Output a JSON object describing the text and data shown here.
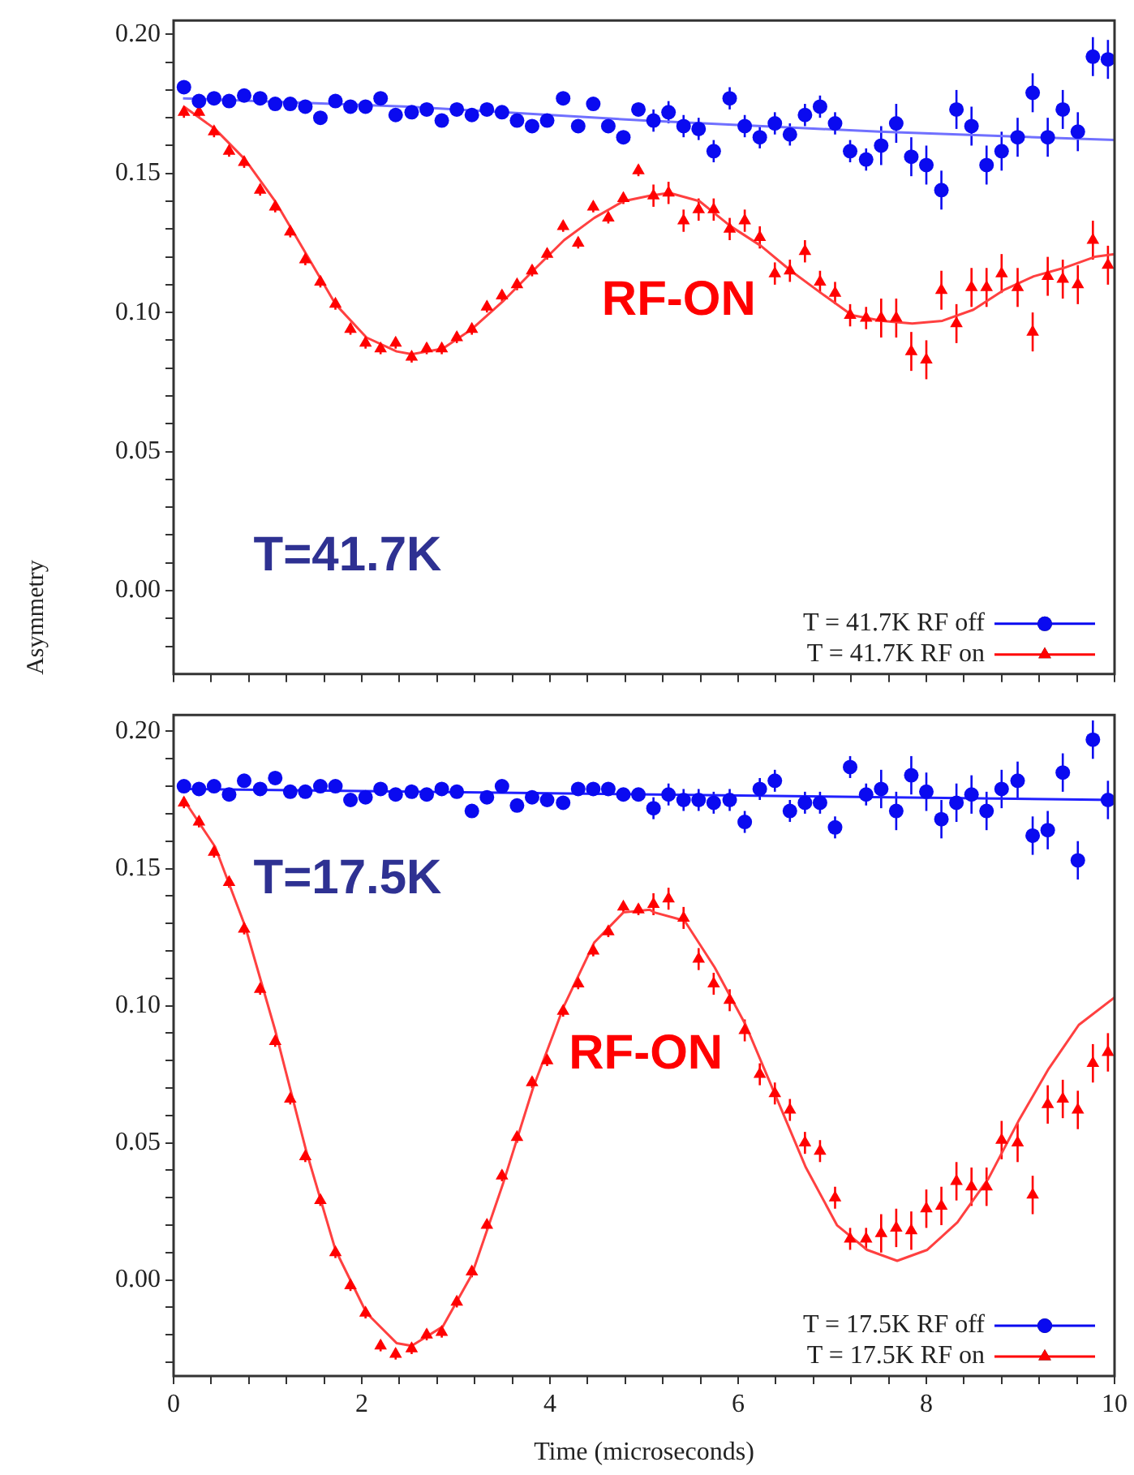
{
  "chart_data": [
    {
      "type": "scatter",
      "ylabel": "Asymmetry",
      "annotations": [
        "RF-ON",
        "T=41.7K"
      ],
      "legend": "bottom right",
      "tick_labels": "y",
      "xlim": [
        0,
        10
      ],
      "ylim": [
        -0.03,
        0.205
      ],
      "xticks": [
        {
          "value": 0,
          "label": null
        },
        {
          "value": 0.4,
          "label": null
        },
        {
          "value": 0.8,
          "label": null
        },
        {
          "value": 1.2,
          "label": null
        },
        {
          "value": 1.6,
          "label": null
        },
        {
          "value": 2,
          "label": null
        },
        {
          "value": 2.4,
          "label": null
        },
        {
          "value": 2.8,
          "label": null
        },
        {
          "value": 3.2,
          "label": null
        },
        {
          "value": 3.6,
          "label": null
        },
        {
          "value": 4,
          "label": null
        },
        {
          "value": 4.4,
          "label": null
        },
        {
          "value": 4.8,
          "label": null
        },
        {
          "value": 5.2,
          "label": null
        },
        {
          "value": 5.6,
          "label": null
        },
        {
          "value": 6,
          "label": null
        },
        {
          "value": 6.4,
          "label": null
        },
        {
          "value": 6.8,
          "label": null
        },
        {
          "value": 7.2,
          "label": null
        },
        {
          "value": 7.6,
          "label": null
        },
        {
          "value": 8,
          "label": null
        },
        {
          "value": 8.4,
          "label": null
        },
        {
          "value": 8.8,
          "label": null
        },
        {
          "value": 9.2,
          "label": null
        },
        {
          "value": 9.6,
          "label": null
        },
        {
          "value": 10,
          "label": null
        }
      ],
      "yticks": [
        {
          "value": -0.02,
          "label": null
        },
        {
          "value": -0.01,
          "label": null
        },
        {
          "value": 0,
          "label": "0.00"
        },
        {
          "value": 0.01,
          "label": null
        },
        {
          "value": 0.02,
          "label": null
        },
        {
          "value": 0.03,
          "label": null
        },
        {
          "value": 0.04,
          "label": null
        },
        {
          "value": 0.05,
          "label": "0.05"
        },
        {
          "value": 0.06,
          "label": null
        },
        {
          "value": 0.07,
          "label": null
        },
        {
          "value": 0.08,
          "label": null
        },
        {
          "value": 0.09,
          "label": null
        },
        {
          "value": 0.1,
          "label": "0.10"
        },
        {
          "value": 0.11,
          "label": null
        },
        {
          "value": 0.12,
          "label": null
        },
        {
          "value": 0.13,
          "label": null
        },
        {
          "value": 0.14,
          "label": null
        },
        {
          "value": 0.15,
          "label": "0.15"
        },
        {
          "value": 0.16,
          "label": null
        },
        {
          "value": 0.17,
          "label": null
        },
        {
          "value": 0.18,
          "label": null
        },
        {
          "value": 0.19,
          "label": null
        },
        {
          "value": 0.2,
          "label": "0.20"
        }
      ],
      "x": [
        0.11,
        0.27,
        0.43,
        0.59,
        0.75,
        0.92,
        1.08,
        1.24,
        1.4,
        1.56,
        1.72,
        1.88,
        2.04,
        2.2,
        2.36,
        2.53,
        2.69,
        2.85,
        3.01,
        3.17,
        3.33,
        3.49,
        3.65,
        3.81,
        3.97,
        4.14,
        4.3,
        4.46,
        4.62,
        4.78,
        4.94,
        5.1,
        5.26,
        5.42,
        5.58,
        5.74,
        5.91,
        6.07,
        6.23,
        6.39,
        6.55,
        6.71,
        6.87,
        7.03,
        7.19,
        7.36,
        7.52,
        7.68,
        7.84,
        8.0,
        8.16,
        8.32,
        8.48,
        8.64,
        8.8,
        8.97,
        9.13,
        9.29,
        9.45,
        9.61,
        9.77,
        9.93
      ],
      "series": [
        {
          "name": "T = 41.7K RF off",
          "color": "#0a0af0",
          "marker": "circle",
          "values": [
            0.181,
            0.176,
            0.177,
            0.176,
            0.178,
            0.177,
            0.175,
            0.175,
            0.174,
            0.17,
            0.176,
            0.174,
            0.174,
            0.177,
            0.171,
            0.172,
            0.173,
            0.169,
            0.173,
            0.171,
            0.173,
            0.172,
            0.169,
            0.167,
            0.169,
            0.177,
            0.167,
            0.175,
            0.167,
            0.163,
            0.173,
            0.169,
            0.172,
            0.167,
            0.166,
            0.158,
            0.177,
            0.167,
            0.163,
            0.168,
            0.164,
            0.171,
            0.174,
            0.168,
            0.158,
            0.155,
            0.16,
            0.168,
            0.156,
            0.153,
            0.144,
            0.173,
            0.167,
            0.153,
            0.158,
            0.163,
            0.179,
            0.163,
            0.173,
            0.165,
            0.192,
            0.191
          ],
          "errors": [
            0.002,
            0.002,
            0.002,
            0.002,
            0.002,
            0.002,
            0.002,
            0.002,
            0.002,
            0.002,
            0.002,
            0.002,
            0.002,
            0.002,
            0.002,
            0.002,
            0.002,
            0.002,
            0.002,
            0.002,
            0.002,
            0.002,
            0.002,
            0.002,
            0.002,
            0.002,
            0.002,
            0.002,
            0.002,
            0.002,
            0.002,
            0.004,
            0.004,
            0.004,
            0.004,
            0.004,
            0.004,
            0.004,
            0.004,
            0.004,
            0.004,
            0.004,
            0.004,
            0.004,
            0.004,
            0.004,
            0.007,
            0.007,
            0.007,
            0.007,
            0.007,
            0.007,
            0.007,
            0.007,
            0.007,
            0.007,
            0.007,
            0.007,
            0.007,
            0.007,
            0.007,
            0.007
          ]
        },
        {
          "name": "T = 41.7K RF on",
          "color": "#ff0000",
          "marker": "triangle",
          "values": [
            0.172,
            0.172,
            0.165,
            0.158,
            0.154,
            0.144,
            0.138,
            0.129,
            0.119,
            0.111,
            0.103,
            0.094,
            0.089,
            0.087,
            0.089,
            0.084,
            0.087,
            0.087,
            0.091,
            0.094,
            0.102,
            0.106,
            0.11,
            0.115,
            0.121,
            0.131,
            0.125,
            0.138,
            0.134,
            0.141,
            0.151,
            0.142,
            0.143,
            0.133,
            0.137,
            0.137,
            0.13,
            0.133,
            0.127,
            0.114,
            0.115,
            0.122,
            0.111,
            0.107,
            0.099,
            0.098,
            0.098,
            0.098,
            0.086,
            0.083,
            0.108,
            0.096,
            0.109,
            0.109,
            0.114,
            0.109,
            0.093,
            0.113,
            0.112,
            0.11,
            0.126,
            0.117
          ],
          "errors": [
            0.002,
            0.002,
            0.002,
            0.002,
            0.002,
            0.002,
            0.002,
            0.002,
            0.002,
            0.002,
            0.002,
            0.002,
            0.002,
            0.002,
            0.002,
            0.002,
            0.002,
            0.002,
            0.002,
            0.002,
            0.002,
            0.002,
            0.002,
            0.002,
            0.002,
            0.002,
            0.002,
            0.002,
            0.002,
            0.002,
            0.002,
            0.004,
            0.004,
            0.004,
            0.004,
            0.004,
            0.004,
            0.004,
            0.004,
            0.004,
            0.004,
            0.004,
            0.004,
            0.004,
            0.004,
            0.004,
            0.007,
            0.007,
            0.007,
            0.007,
            0.007,
            0.007,
            0.007,
            0.007,
            0.007,
            0.007,
            0.007,
            0.007,
            0.007,
            0.007,
            0.007,
            0.007
          ]
        },
        {
          "type": "line",
          "marker": "none",
          "color": "#7070ff",
          "x": [
            0.1,
            2.5,
            5,
            7.5,
            10
          ],
          "values": [
            0.177,
            0.174,
            0.169,
            0.165,
            0.162
          ]
        },
        {
          "type": "line",
          "marker": "none",
          "color": "#ff4040",
          "x": [
            0.11,
            0.44,
            0.76,
            1.08,
            1.41,
            1.72,
            2.05,
            2.37,
            2.53,
            2.86,
            3.17,
            3.5,
            3.82,
            4.15,
            4.47,
            4.78,
            5.06,
            5.27,
            5.59,
            5.92,
            6.24,
            6.56,
            6.88,
            7.21,
            7.53,
            7.85,
            8.17,
            8.5,
            8.82,
            9.14,
            9.46,
            9.79,
            10
          ],
          "values": [
            0.174,
            0.166,
            0.155,
            0.14,
            0.121,
            0.103,
            0.091,
            0.086,
            0.085,
            0.087,
            0.094,
            0.104,
            0.115,
            0.126,
            0.134,
            0.14,
            0.142,
            0.143,
            0.14,
            0.131,
            0.124,
            0.115,
            0.107,
            0.099,
            0.097,
            0.096,
            0.097,
            0.101,
            0.108,
            0.113,
            0.116,
            0.12,
            0.121
          ]
        }
      ]
    },
    {
      "type": "scatter",
      "xlabel": "Time (microseconds)",
      "annotations": [
        "T=17.5K",
        "RF-ON"
      ],
      "legend": "bottom right",
      "xlim": [
        0,
        10
      ],
      "ylim": [
        -0.035,
        0.206
      ],
      "xticks": [
        0,
        {
          "value": 0.4,
          "label": null
        },
        {
          "value": 0.8,
          "label": null
        },
        {
          "value": 1.2,
          "label": null
        },
        {
          "value": 1.6,
          "label": null
        },
        2,
        {
          "value": 2.4,
          "label": null
        },
        {
          "value": 2.8,
          "label": null
        },
        {
          "value": 3.2,
          "label": null
        },
        {
          "value": 3.6,
          "label": null
        },
        4,
        {
          "value": 4.4,
          "label": null
        },
        {
          "value": 4.8,
          "label": null
        },
        {
          "value": 5.2,
          "label": null
        },
        {
          "value": 5.6,
          "label": null
        },
        6,
        {
          "value": 6.4,
          "label": null
        },
        {
          "value": 6.8,
          "label": null
        },
        {
          "value": 7.2,
          "label": null
        },
        {
          "value": 7.6,
          "label": null
        },
        8,
        {
          "value": 8.4,
          "label": null
        },
        {
          "value": 8.8,
          "label": null
        },
        {
          "value": 9.2,
          "label": null
        },
        {
          "value": 9.6,
          "label": null
        },
        10
      ],
      "yticks": [
        {
          "value": -0.03,
          "label": null
        },
        {
          "value": -0.02,
          "label": null
        },
        {
          "value": -0.01,
          "label": null
        },
        {
          "value": 0,
          "label": "0.00"
        },
        {
          "value": 0.01,
          "label": null
        },
        {
          "value": 0.02,
          "label": null
        },
        {
          "value": 0.03,
          "label": null
        },
        {
          "value": 0.04,
          "label": null
        },
        {
          "value": 0.05,
          "label": "0.05"
        },
        {
          "value": 0.06,
          "label": null
        },
        {
          "value": 0.07,
          "label": null
        },
        {
          "value": 0.08,
          "label": null
        },
        {
          "value": 0.09,
          "label": null
        },
        {
          "value": 0.1,
          "label": "0.10"
        },
        {
          "value": 0.11,
          "label": null
        },
        {
          "value": 0.12,
          "label": null
        },
        {
          "value": 0.13,
          "label": null
        },
        {
          "value": 0.14,
          "label": null
        },
        {
          "value": 0.15,
          "label": "0.15"
        },
        {
          "value": 0.16,
          "label": null
        },
        {
          "value": 0.17,
          "label": null
        },
        {
          "value": 0.18,
          "label": null
        },
        {
          "value": 0.19,
          "label": null
        },
        {
          "value": 0.2,
          "label": "0.20"
        }
      ],
      "x": [
        0.11,
        0.27,
        0.43,
        0.59,
        0.75,
        0.92,
        1.08,
        1.24,
        1.4,
        1.56,
        1.72,
        1.88,
        2.04,
        2.2,
        2.36,
        2.53,
        2.69,
        2.85,
        3.01,
        3.17,
        3.33,
        3.49,
        3.65,
        3.81,
        3.97,
        4.14,
        4.3,
        4.46,
        4.62,
        4.78,
        4.94,
        5.1,
        5.26,
        5.42,
        5.58,
        5.74,
        5.91,
        6.07,
        6.23,
        6.39,
        6.55,
        6.71,
        6.87,
        7.03,
        7.19,
        7.36,
        7.52,
        7.68,
        7.84,
        8.0,
        8.16,
        8.32,
        8.48,
        8.64,
        8.8,
        8.97,
        9.13,
        9.29,
        9.45,
        9.61,
        9.77,
        9.93
      ],
      "series": [
        {
          "name": "T = 17.5K RF off",
          "color": "#0a0af0",
          "marker": "circle",
          "values": [
            0.18,
            0.179,
            0.18,
            0.177,
            0.182,
            0.179,
            0.183,
            0.178,
            0.178,
            0.18,
            0.18,
            0.175,
            0.176,
            0.179,
            0.177,
            0.178,
            0.177,
            0.179,
            0.178,
            0.171,
            0.176,
            0.18,
            0.173,
            0.176,
            0.175,
            0.174,
            0.179,
            0.179,
            0.179,
            0.177,
            0.177,
            0.172,
            0.177,
            0.175,
            0.175,
            0.174,
            0.175,
            0.167,
            0.179,
            0.182,
            0.171,
            0.174,
            0.174,
            0.165,
            0.187,
            0.177,
            0.179,
            0.171,
            0.184,
            0.178,
            0.168,
            0.174,
            0.177,
            0.171,
            0.179,
            0.182,
            0.162,
            0.164,
            0.185,
            0.153,
            0.197,
            0.175
          ],
          "errors": [
            0.002,
            0.002,
            0.002,
            0.002,
            0.002,
            0.002,
            0.002,
            0.002,
            0.002,
            0.002,
            0.002,
            0.002,
            0.002,
            0.002,
            0.002,
            0.002,
            0.002,
            0.002,
            0.002,
            0.002,
            0.002,
            0.002,
            0.002,
            0.002,
            0.002,
            0.002,
            0.002,
            0.002,
            0.002,
            0.002,
            0.002,
            0.004,
            0.004,
            0.004,
            0.004,
            0.004,
            0.004,
            0.004,
            0.004,
            0.004,
            0.004,
            0.004,
            0.004,
            0.004,
            0.004,
            0.004,
            0.007,
            0.007,
            0.007,
            0.007,
            0.007,
            0.007,
            0.007,
            0.007,
            0.007,
            0.007,
            0.007,
            0.007,
            0.007,
            0.007,
            0.007,
            0.007
          ]
        },
        {
          "name": "T = 17.5K RF on",
          "color": "#ff0000",
          "marker": "triangle",
          "values": [
            0.174,
            0.167,
            0.156,
            0.145,
            0.128,
            0.106,
            0.087,
            0.066,
            0.045,
            0.029,
            0.01,
            -0.002,
            -0.012,
            -0.024,
            -0.027,
            -0.025,
            -0.02,
            -0.019,
            -0.008,
            0.003,
            0.02,
            0.038,
            0.052,
            0.072,
            0.08,
            0.098,
            0.108,
            0.12,
            0.127,
            0.136,
            0.135,
            0.137,
            0.139,
            0.132,
            0.117,
            0.108,
            0.102,
            0.091,
            0.075,
            0.068,
            0.062,
            0.05,
            0.047,
            0.03,
            0.015,
            0.015,
            0.017,
            0.019,
            0.018,
            0.026,
            0.027,
            0.036,
            0.034,
            0.034,
            0.051,
            0.05,
            0.031,
            0.064,
            0.066,
            0.062,
            0.079,
            0.083
          ],
          "errors": [
            0.002,
            0.002,
            0.002,
            0.002,
            0.002,
            0.002,
            0.002,
            0.002,
            0.002,
            0.002,
            0.002,
            0.002,
            0.002,
            0.002,
            0.002,
            0.002,
            0.002,
            0.002,
            0.002,
            0.002,
            0.002,
            0.002,
            0.002,
            0.002,
            0.002,
            0.002,
            0.002,
            0.002,
            0.002,
            0.002,
            0.002,
            0.004,
            0.004,
            0.004,
            0.004,
            0.004,
            0.004,
            0.004,
            0.004,
            0.004,
            0.004,
            0.004,
            0.004,
            0.004,
            0.004,
            0.004,
            0.007,
            0.007,
            0.007,
            0.007,
            0.007,
            0.007,
            0.007,
            0.007,
            0.007,
            0.007,
            0.007,
            0.007,
            0.007,
            0.007,
            0.007,
            0.007
          ]
        },
        {
          "type": "line",
          "marker": "none",
          "color": "#2020ff",
          "x": [
            0.1,
            10
          ],
          "values": [
            0.179,
            0.175
          ]
        },
        {
          "type": "line",
          "marker": "none",
          "color": "#ff4040",
          "x": [
            0.11,
            0.44,
            0.76,
            1.08,
            1.41,
            1.72,
            2.05,
            2.37,
            2.53,
            2.86,
            3.17,
            3.5,
            3.82,
            4.15,
            4.47,
            4.78,
            5.06,
            5.11,
            5.43,
            5.75,
            6.08,
            6.4,
            6.72,
            7.05,
            7.37,
            7.69,
            8.01,
            8.33,
            8.66,
            8.98,
            9.3,
            9.62,
            10
          ],
          "values": [
            0.175,
            0.158,
            0.129,
            0.091,
            0.047,
            0.011,
            -0.012,
            -0.023,
            -0.024,
            -0.017,
            0.002,
            0.035,
            0.07,
            0.1,
            0.123,
            0.134,
            0.135,
            0.134,
            0.131,
            0.114,
            0.093,
            0.067,
            0.041,
            0.02,
            0.011,
            0.007,
            0.011,
            0.021,
            0.037,
            0.058,
            0.077,
            0.093,
            0.103
          ]
        }
      ]
    }
  ]
}
